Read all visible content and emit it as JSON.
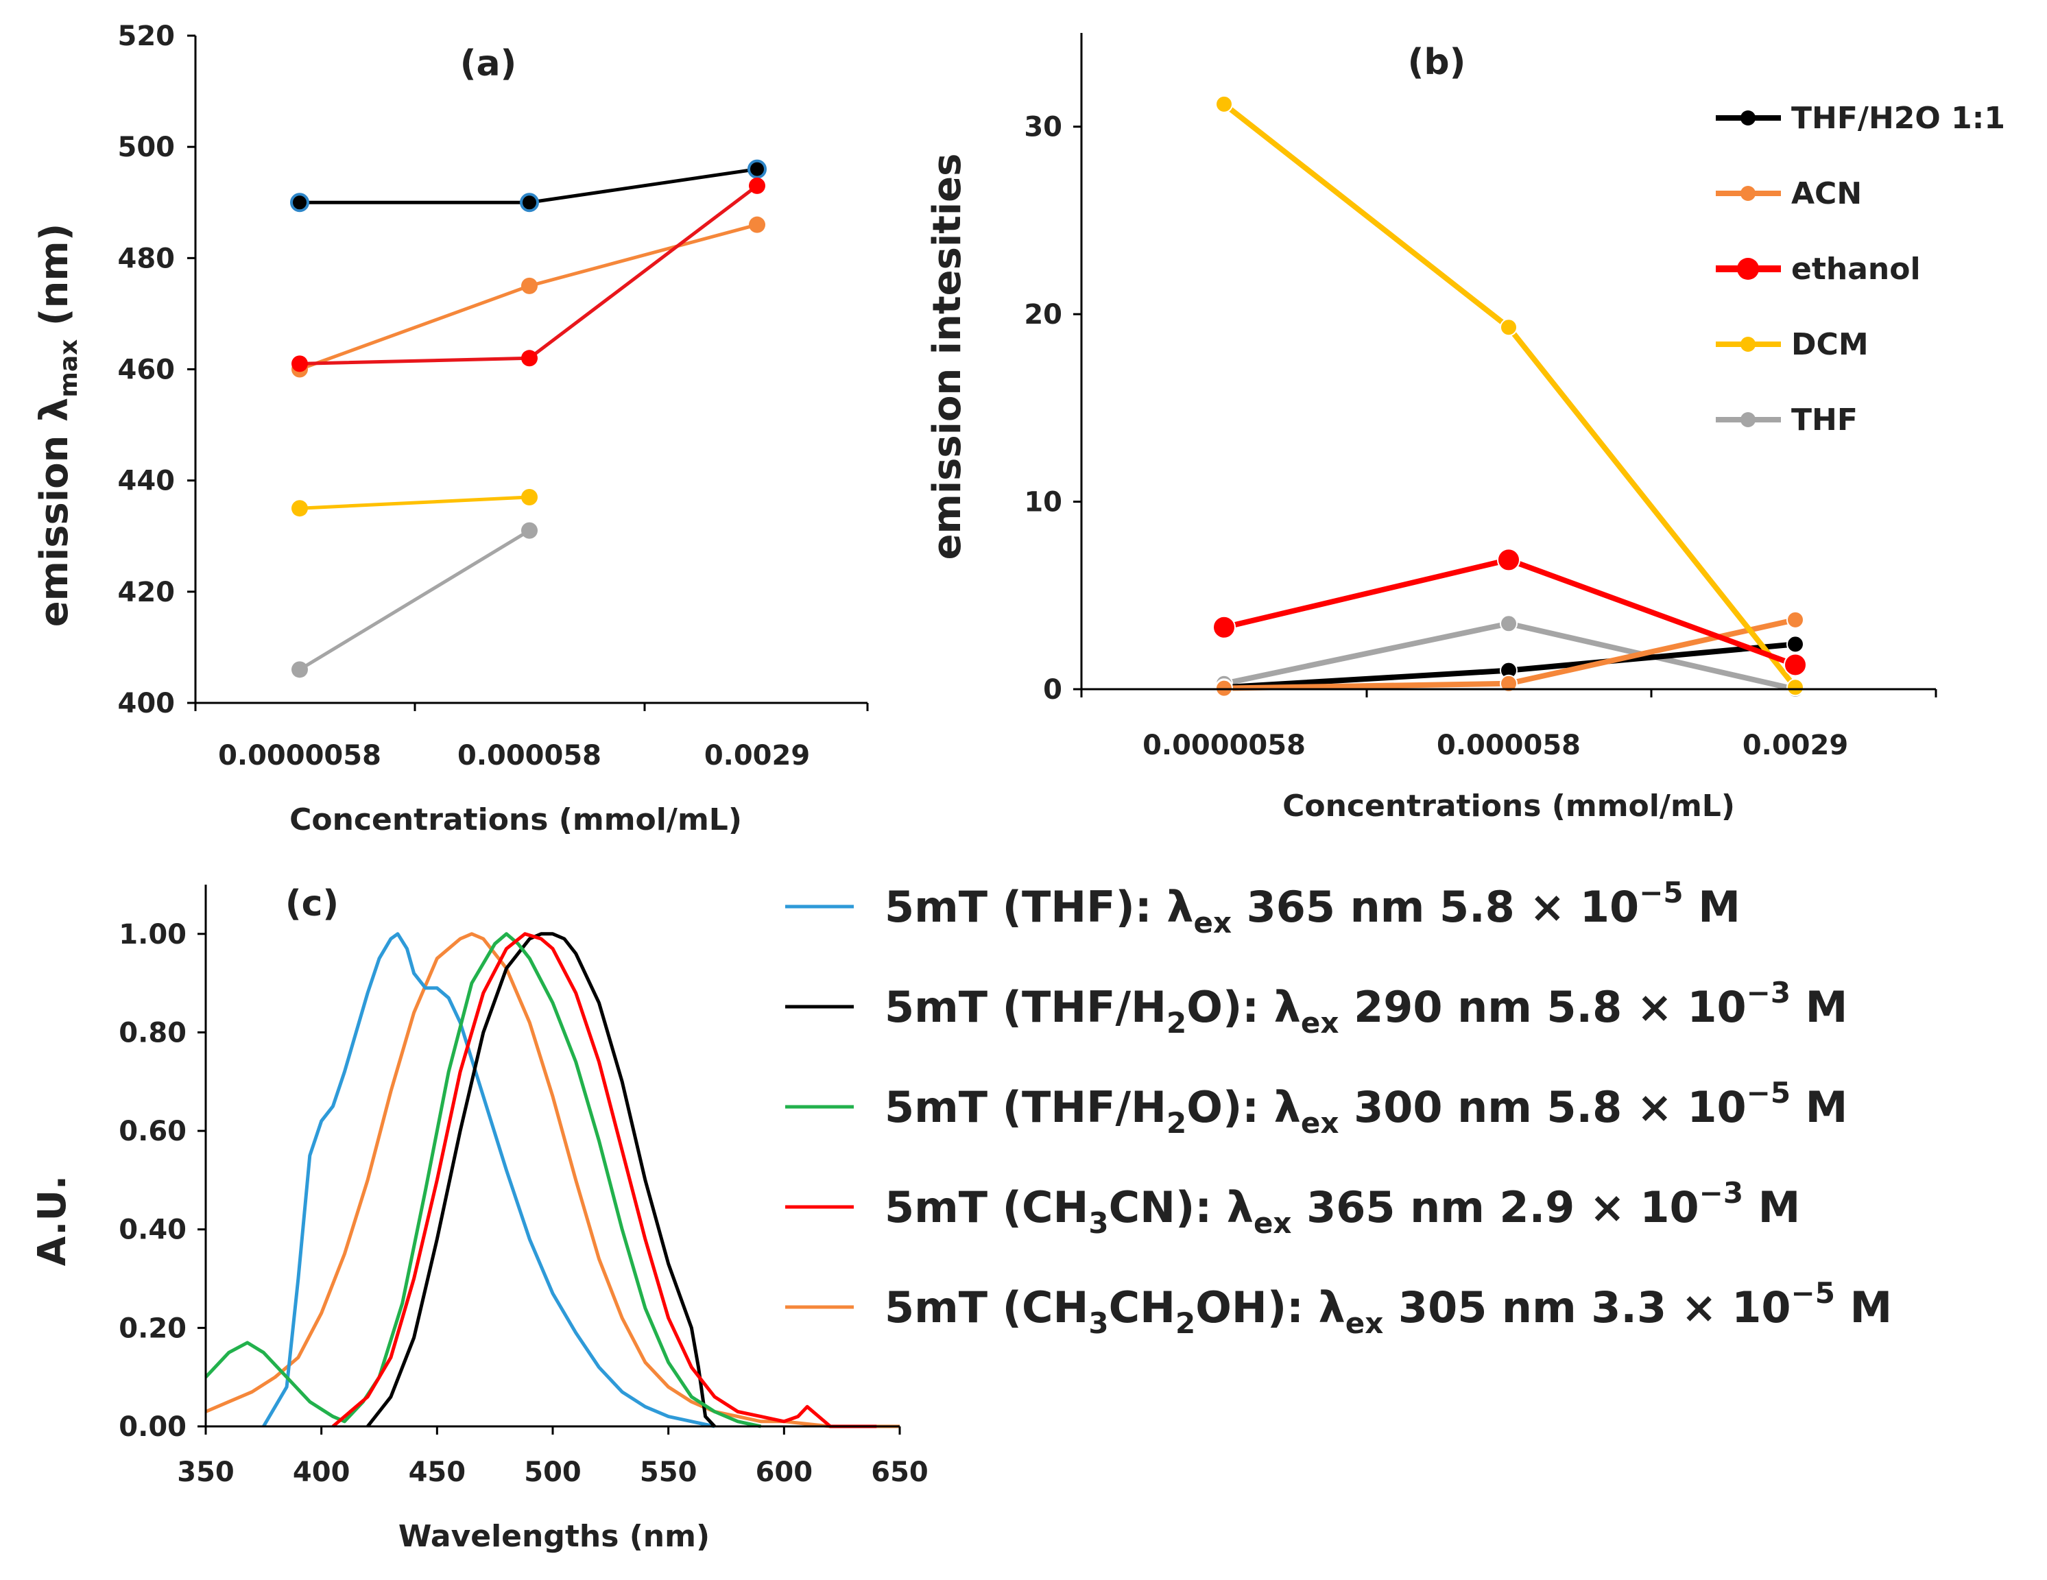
{
  "figure": {
    "panels": [
      "(a)",
      "(b)",
      "(c)"
    ]
  },
  "chart_data": [
    {
      "panel": "(a)",
      "type": "line",
      "title": "(a)",
      "xlabel": "Concentrations (mmol/mL)",
      "ylabel_main": "emission λ",
      "ylabel_sub": "max",
      "ylabel_suffix": " (nm)",
      "categories": [
        "0.0000058",
        "0.000058",
        "0.0029"
      ],
      "ylim": [
        400,
        520
      ],
      "yticks": [
        400,
        420,
        440,
        460,
        480,
        500,
        520
      ],
      "series": [
        {
          "name": "THF/H2O 1:1",
          "color": "#000000",
          "marker": "#000000",
          "marker_edge": "#2e86c8",
          "values": [
            490,
            490,
            496
          ]
        },
        {
          "name": "ACN",
          "color": "#f5873a",
          "marker": "#f5873a",
          "values": [
            460,
            475,
            486
          ]
        },
        {
          "name": "ethanol",
          "color": "#e8161b",
          "marker": "#ff0000",
          "values": [
            461,
            462,
            493
          ]
        },
        {
          "name": "DCM",
          "color": "#ffc000",
          "marker": "#ffc000",
          "values": [
            435,
            437,
            null
          ]
        },
        {
          "name": "THF",
          "color": "#a5a5a5",
          "marker": "#a5a5a5",
          "values": [
            406,
            431,
            null
          ]
        }
      ]
    },
    {
      "panel": "(b)",
      "type": "line",
      "title": "(b)",
      "xlabel": "Concentrations (mmol/mL)",
      "ylabel": "emission intesities",
      "categories": [
        "0.0000058",
        "0.000058",
        "0.0029"
      ],
      "ylim": [
        0,
        35
      ],
      "yticks": [
        0,
        10,
        20,
        30
      ],
      "legend": [
        "THF/H2O 1:1",
        "ACN",
        "ethanol",
        "DCM",
        "THF"
      ],
      "series": [
        {
          "name": "THF/H2O 1:1",
          "color": "#000000",
          "values": [
            0.1,
            1.0,
            2.4
          ]
        },
        {
          "name": "ACN",
          "color": "#f5873a",
          "values": [
            0.05,
            0.3,
            3.7
          ]
        },
        {
          "name": "ethanol",
          "color": "#ff0000",
          "values": [
            3.3,
            6.9,
            1.3
          ]
        },
        {
          "name": "DCM",
          "color": "#ffc000",
          "values": [
            31.2,
            19.3,
            0.1
          ]
        },
        {
          "name": "THF",
          "color": "#a5a5a5",
          "values": [
            0.3,
            3.5,
            0.0
          ]
        }
      ]
    },
    {
      "panel": "(c)",
      "type": "line",
      "title": "(c)",
      "xlabel": "Wavelengths (nm)",
      "ylabel": "A.U.",
      "xlim": [
        350,
        650
      ],
      "xticks": [
        350,
        400,
        450,
        500,
        550,
        600,
        650
      ],
      "ylim": [
        0,
        1.1
      ],
      "yticks": [
        "0.00",
        "0.20",
        "0.40",
        "0.60",
        "0.80",
        "1.00"
      ],
      "legend": [
        {
          "color": "#2e9ad8",
          "prefix": "5mT (THF): λ",
          "sub": "ex",
          "mid": " 365 nm 5.8 × 10",
          "sup": "−5",
          "end": " M"
        },
        {
          "color": "#000000",
          "prefix": "5mT (THF/H",
          "sub": "2",
          "prefix2": "O): λ",
          "sub2": "ex",
          "mid": " 290 nm 5.8 × 10",
          "sup": "−3",
          "end": " M"
        },
        {
          "color": "#22b14c",
          "prefix": "5mT (THF/H",
          "sub": "2",
          "prefix2": "O): λ",
          "sub2": "ex",
          "mid": " 300 nm 5.8 × 10",
          "sup": "−5",
          "end": " M"
        },
        {
          "color": "#ff0000",
          "prefix": "5mT (CH",
          "sub": "3",
          "prefix2": "CN): λ",
          "sub2": "ex",
          "mid": " 365 nm 2.9 × 10",
          "sup": "−3",
          "end": " M"
        },
        {
          "color": "#f5873a",
          "prefix": "5mT (CH",
          "sub": "3",
          "prefix2": "CH",
          "sub2": "2",
          "prefix3": "OH): λ",
          "sub3": "ex",
          "mid": " 305 nm 3.3 × 10",
          "sup": "−5",
          "end": " M"
        }
      ],
      "series": [
        {
          "name": "THF",
          "color": "#2e9ad8",
          "x": [
            375,
            385,
            390,
            395,
            400,
            405,
            410,
            420,
            425,
            430,
            433,
            437,
            440,
            445,
            450,
            455,
            460,
            470,
            480,
            490,
            500,
            510,
            520,
            530,
            540,
            550,
            560,
            570
          ],
          "y": [
            0.0,
            0.08,
            0.3,
            0.55,
            0.62,
            0.65,
            0.72,
            0.88,
            0.95,
            0.99,
            1.0,
            0.97,
            0.92,
            0.89,
            0.89,
            0.87,
            0.82,
            0.67,
            0.52,
            0.38,
            0.27,
            0.19,
            0.12,
            0.07,
            0.04,
            0.02,
            0.01,
            0.0
          ]
        },
        {
          "name": "THF/H2O 290",
          "color": "#000000",
          "x": [
            420,
            425,
            430,
            440,
            450,
            460,
            470,
            480,
            490,
            495,
            500,
            505,
            510,
            520,
            530,
            540,
            550,
            560,
            563,
            566,
            570
          ],
          "y": [
            0.0,
            0.03,
            0.06,
            0.18,
            0.38,
            0.6,
            0.8,
            0.93,
            0.99,
            1.0,
            1.0,
            0.99,
            0.96,
            0.86,
            0.7,
            0.5,
            0.33,
            0.2,
            0.12,
            0.02,
            0.0
          ]
        },
        {
          "name": "THF/H2O 300",
          "color": "#22b14c",
          "x": [
            350,
            360,
            368,
            375,
            385,
            395,
            405,
            410,
            418,
            425,
            435,
            445,
            455,
            465,
            475,
            480,
            485,
            490,
            500,
            510,
            520,
            530,
            540,
            550,
            560,
            570,
            580,
            590
          ],
          "y": [
            0.1,
            0.15,
            0.17,
            0.15,
            0.1,
            0.05,
            0.02,
            0.01,
            0.05,
            0.1,
            0.25,
            0.48,
            0.72,
            0.9,
            0.98,
            1.0,
            0.98,
            0.95,
            0.86,
            0.74,
            0.58,
            0.4,
            0.24,
            0.13,
            0.06,
            0.03,
            0.01,
            0.0
          ]
        },
        {
          "name": "CH3CN",
          "color": "#ff0000",
          "x": [
            405,
            410,
            420,
            430,
            440,
            450,
            460,
            470,
            480,
            488,
            495,
            500,
            510,
            520,
            530,
            540,
            550,
            560,
            570,
            580,
            590,
            600,
            606,
            610,
            615,
            620,
            640
          ],
          "y": [
            0.0,
            0.02,
            0.06,
            0.14,
            0.3,
            0.5,
            0.72,
            0.88,
            0.97,
            1.0,
            0.99,
            0.97,
            0.88,
            0.74,
            0.56,
            0.38,
            0.22,
            0.12,
            0.06,
            0.03,
            0.02,
            0.01,
            0.02,
            0.04,
            0.02,
            0.0,
            0.0
          ]
        },
        {
          "name": "CH3CH2OH",
          "color": "#f5873a",
          "x": [
            350,
            360,
            370,
            380,
            390,
            400,
            410,
            420,
            430,
            440,
            450,
            460,
            465,
            470,
            480,
            490,
            500,
            510,
            520,
            530,
            540,
            550,
            560,
            570,
            580,
            590,
            600,
            620,
            650
          ],
          "y": [
            0.03,
            0.05,
            0.07,
            0.1,
            0.14,
            0.23,
            0.35,
            0.5,
            0.68,
            0.84,
            0.95,
            0.99,
            1.0,
            0.99,
            0.93,
            0.82,
            0.67,
            0.5,
            0.34,
            0.22,
            0.13,
            0.08,
            0.05,
            0.03,
            0.02,
            0.01,
            0.01,
            0.0,
            0.0
          ]
        }
      ]
    }
  ]
}
